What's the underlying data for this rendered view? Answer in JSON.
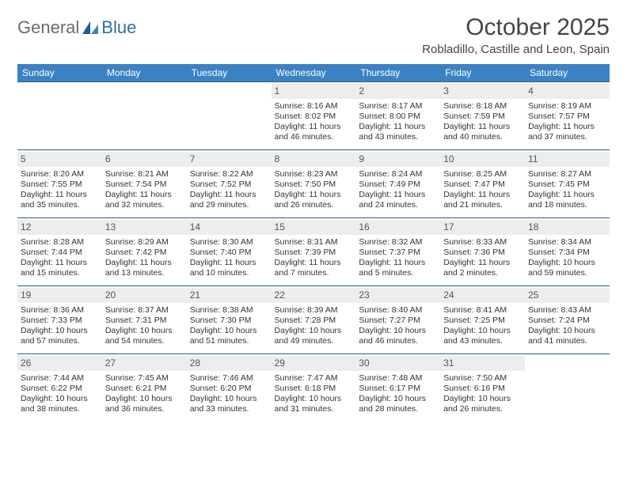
{
  "logo": {
    "text1": "General",
    "text2": "Blue"
  },
  "title": "October 2025",
  "location": "Robladillo, Castille and Leon, Spain",
  "colors": {
    "header_bg": "#3b82c4",
    "row_border": "#2a5a8a",
    "daynum_bg": "#ededed",
    "logo_gray": "#6a6a6a",
    "logo_blue": "#2f6fa7"
  },
  "daysOfWeek": [
    "Sunday",
    "Monday",
    "Tuesday",
    "Wednesday",
    "Thursday",
    "Friday",
    "Saturday"
  ],
  "weeks": [
    [
      {
        "n": "",
        "empty": true
      },
      {
        "n": "",
        "empty": true
      },
      {
        "n": "",
        "empty": true
      },
      {
        "n": "1",
        "sr": "8:16 AM",
        "ss": "8:02 PM",
        "dl": "11 hours and 46 minutes."
      },
      {
        "n": "2",
        "sr": "8:17 AM",
        "ss": "8:00 PM",
        "dl": "11 hours and 43 minutes."
      },
      {
        "n": "3",
        "sr": "8:18 AM",
        "ss": "7:59 PM",
        "dl": "11 hours and 40 minutes."
      },
      {
        "n": "4",
        "sr": "8:19 AM",
        "ss": "7:57 PM",
        "dl": "11 hours and 37 minutes."
      }
    ],
    [
      {
        "n": "5",
        "sr": "8:20 AM",
        "ss": "7:55 PM",
        "dl": "11 hours and 35 minutes."
      },
      {
        "n": "6",
        "sr": "8:21 AM",
        "ss": "7:54 PM",
        "dl": "11 hours and 32 minutes."
      },
      {
        "n": "7",
        "sr": "8:22 AM",
        "ss": "7:52 PM",
        "dl": "11 hours and 29 minutes."
      },
      {
        "n": "8",
        "sr": "8:23 AM",
        "ss": "7:50 PM",
        "dl": "11 hours and 26 minutes."
      },
      {
        "n": "9",
        "sr": "8:24 AM",
        "ss": "7:49 PM",
        "dl": "11 hours and 24 minutes."
      },
      {
        "n": "10",
        "sr": "8:25 AM",
        "ss": "7:47 PM",
        "dl": "11 hours and 21 minutes."
      },
      {
        "n": "11",
        "sr": "8:27 AM",
        "ss": "7:45 PM",
        "dl": "11 hours and 18 minutes."
      }
    ],
    [
      {
        "n": "12",
        "sr": "8:28 AM",
        "ss": "7:44 PM",
        "dl": "11 hours and 15 minutes."
      },
      {
        "n": "13",
        "sr": "8:29 AM",
        "ss": "7:42 PM",
        "dl": "11 hours and 13 minutes."
      },
      {
        "n": "14",
        "sr": "8:30 AM",
        "ss": "7:40 PM",
        "dl": "11 hours and 10 minutes."
      },
      {
        "n": "15",
        "sr": "8:31 AM",
        "ss": "7:39 PM",
        "dl": "11 hours and 7 minutes."
      },
      {
        "n": "16",
        "sr": "8:32 AM",
        "ss": "7:37 PM",
        "dl": "11 hours and 5 minutes."
      },
      {
        "n": "17",
        "sr": "8:33 AM",
        "ss": "7:36 PM",
        "dl": "11 hours and 2 minutes."
      },
      {
        "n": "18",
        "sr": "8:34 AM",
        "ss": "7:34 PM",
        "dl": "10 hours and 59 minutes."
      }
    ],
    [
      {
        "n": "19",
        "sr": "8:36 AM",
        "ss": "7:33 PM",
        "dl": "10 hours and 57 minutes."
      },
      {
        "n": "20",
        "sr": "8:37 AM",
        "ss": "7:31 PM",
        "dl": "10 hours and 54 minutes."
      },
      {
        "n": "21",
        "sr": "8:38 AM",
        "ss": "7:30 PM",
        "dl": "10 hours and 51 minutes."
      },
      {
        "n": "22",
        "sr": "8:39 AM",
        "ss": "7:28 PM",
        "dl": "10 hours and 49 minutes."
      },
      {
        "n": "23",
        "sr": "8:40 AM",
        "ss": "7:27 PM",
        "dl": "10 hours and 46 minutes."
      },
      {
        "n": "24",
        "sr": "8:41 AM",
        "ss": "7:25 PM",
        "dl": "10 hours and 43 minutes."
      },
      {
        "n": "25",
        "sr": "8:43 AM",
        "ss": "7:24 PM",
        "dl": "10 hours and 41 minutes."
      }
    ],
    [
      {
        "n": "26",
        "sr": "7:44 AM",
        "ss": "6:22 PM",
        "dl": "10 hours and 38 minutes."
      },
      {
        "n": "27",
        "sr": "7:45 AM",
        "ss": "6:21 PM",
        "dl": "10 hours and 36 minutes."
      },
      {
        "n": "28",
        "sr": "7:46 AM",
        "ss": "6:20 PM",
        "dl": "10 hours and 33 minutes."
      },
      {
        "n": "29",
        "sr": "7:47 AM",
        "ss": "6:18 PM",
        "dl": "10 hours and 31 minutes."
      },
      {
        "n": "30",
        "sr": "7:48 AM",
        "ss": "6:17 PM",
        "dl": "10 hours and 28 minutes."
      },
      {
        "n": "31",
        "sr": "7:50 AM",
        "ss": "6:16 PM",
        "dl": "10 hours and 26 minutes."
      },
      {
        "n": "",
        "empty": true
      }
    ]
  ],
  "labels": {
    "sunrise": "Sunrise: ",
    "sunset": "Sunset: ",
    "daylight": "Daylight: "
  }
}
